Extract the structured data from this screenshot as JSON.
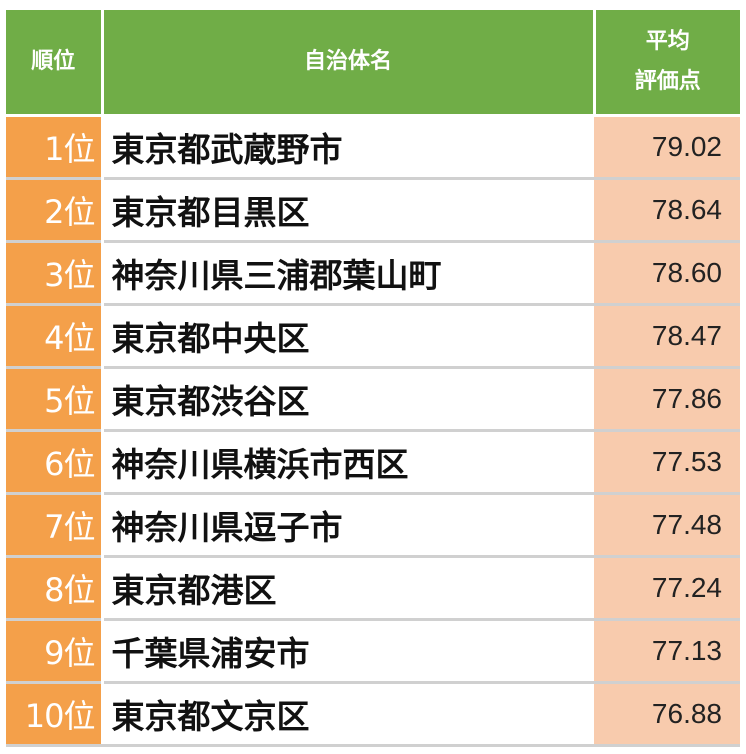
{
  "header": {
    "rank_label": "順位",
    "name_label": "自治体名",
    "score_label_line1": "平均",
    "score_label_line2": "評価点"
  },
  "rows": [
    {
      "rank": "1位",
      "name": "東京都武蔵野市",
      "score": "79.02"
    },
    {
      "rank": "2位",
      "name": "東京都目黒区",
      "score": "78.64"
    },
    {
      "rank": "3位",
      "name": "神奈川県三浦郡葉山町",
      "score": "78.60"
    },
    {
      "rank": "4位",
      "name": "東京都中央区",
      "score": "78.47"
    },
    {
      "rank": "5位",
      "name": "東京都渋谷区",
      "score": "77.86"
    },
    {
      "rank": "6位",
      "name": "神奈川県横浜市西区",
      "score": "77.53"
    },
    {
      "rank": "7位",
      "name": "神奈川県逗子市",
      "score": "77.48"
    },
    {
      "rank": "8位",
      "name": "東京都港区",
      "score": "77.24"
    },
    {
      "rank": "9位",
      "name": "千葉県浦安市",
      "score": "77.13"
    },
    {
      "rank": "10位",
      "name": "東京都文京区",
      "score": "76.88"
    }
  ],
  "colors": {
    "header_bg": "#70ad47",
    "rank_bg": "#f4a04a",
    "score_bg": "#f8cbad"
  }
}
